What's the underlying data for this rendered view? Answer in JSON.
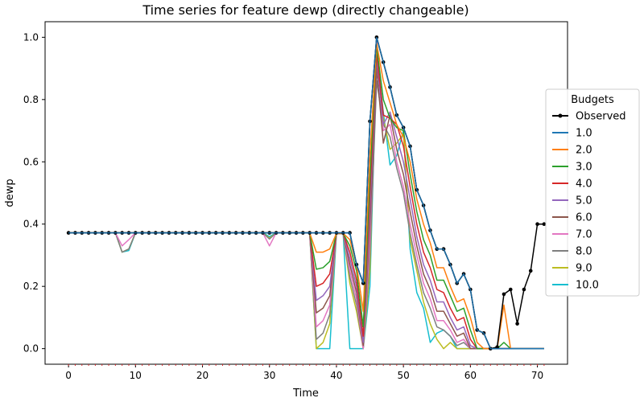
{
  "chart_data": {
    "type": "line",
    "title": "Time series for feature dewp (directly changeable)",
    "xlabel": "Time",
    "ylabel": "dewp",
    "xlim": [
      -3.5,
      74.5
    ],
    "ylim": [
      -0.05,
      1.05
    ],
    "xticks": [
      0,
      10,
      20,
      30,
      40,
      50,
      60,
      70
    ],
    "yticks": [
      0.0,
      0.2,
      0.4,
      0.6,
      0.8,
      1.0
    ],
    "grid": false,
    "legend": {
      "title": "Budgets",
      "placement": "right"
    },
    "series": [
      {
        "name": "Observed",
        "color": "#000000",
        "markers": true,
        "values": [
          0.372,
          0.372,
          0.372,
          0.372,
          0.372,
          0.372,
          0.372,
          0.372,
          0.372,
          0.372,
          0.372,
          0.372,
          0.372,
          0.372,
          0.372,
          0.372,
          0.372,
          0.372,
          0.372,
          0.372,
          0.372,
          0.372,
          0.372,
          0.372,
          0.372,
          0.372,
          0.372,
          0.372,
          0.372,
          0.372,
          0.372,
          0.372,
          0.372,
          0.372,
          0.372,
          0.372,
          0.372,
          0.372,
          0.372,
          0.372,
          0.372,
          0.372,
          0.372,
          0.27,
          0.21,
          0.73,
          1.0,
          0.92,
          0.84,
          0.75,
          0.71,
          0.65,
          0.51,
          0.46,
          0.38,
          0.32,
          0.32,
          0.27,
          0.21,
          0.24,
          0.19,
          0.06,
          0.05,
          0.0,
          0.005,
          0.175,
          0.19,
          0.08,
          0.19,
          0.25,
          0.4,
          0.4
        ]
      },
      {
        "name": "1.0",
        "color": "#1f77b4",
        "values": [
          0.372,
          0.372,
          0.372,
          0.372,
          0.372,
          0.372,
          0.372,
          0.372,
          0.372,
          0.372,
          0.372,
          0.372,
          0.372,
          0.372,
          0.372,
          0.372,
          0.372,
          0.372,
          0.372,
          0.372,
          0.372,
          0.372,
          0.372,
          0.372,
          0.372,
          0.372,
          0.372,
          0.372,
          0.372,
          0.372,
          0.372,
          0.372,
          0.372,
          0.372,
          0.372,
          0.372,
          0.372,
          0.372,
          0.372,
          0.372,
          0.372,
          0.372,
          0.372,
          0.27,
          0.21,
          0.73,
          1.0,
          0.92,
          0.84,
          0.75,
          0.71,
          0.65,
          0.51,
          0.46,
          0.38,
          0.32,
          0.32,
          0.27,
          0.21,
          0.24,
          0.19,
          0.06,
          0.05,
          0.0,
          0.0,
          0.0,
          0.0,
          0.0,
          0.0,
          0.0,
          0.0,
          0.0
        ]
      },
      {
        "name": "2.0",
        "color": "#ff7f0e",
        "values": [
          0.372,
          0.372,
          0.372,
          0.372,
          0.372,
          0.372,
          0.372,
          0.372,
          0.372,
          0.372,
          0.372,
          0.372,
          0.372,
          0.372,
          0.372,
          0.372,
          0.372,
          0.372,
          0.372,
          0.372,
          0.372,
          0.372,
          0.372,
          0.372,
          0.372,
          0.372,
          0.372,
          0.372,
          0.372,
          0.372,
          0.372,
          0.372,
          0.372,
          0.372,
          0.372,
          0.372,
          0.372,
          0.31,
          0.31,
          0.32,
          0.37,
          0.37,
          0.35,
          0.27,
          0.12,
          0.62,
          0.98,
          0.86,
          0.79,
          0.72,
          0.68,
          0.6,
          0.48,
          0.4,
          0.34,
          0.26,
          0.26,
          0.2,
          0.15,
          0.16,
          0.1,
          0.02,
          0.0,
          0.0,
          0.0,
          0.14,
          0.0,
          0.0,
          0.0,
          0.0,
          0.0,
          0.0
        ]
      },
      {
        "name": "3.0",
        "color": "#2ca02c",
        "values": [
          0.372,
          0.372,
          0.372,
          0.372,
          0.372,
          0.372,
          0.372,
          0.372,
          0.372,
          0.372,
          0.372,
          0.372,
          0.372,
          0.372,
          0.372,
          0.372,
          0.372,
          0.372,
          0.372,
          0.372,
          0.372,
          0.372,
          0.372,
          0.372,
          0.372,
          0.372,
          0.372,
          0.372,
          0.372,
          0.372,
          0.372,
          0.372,
          0.372,
          0.372,
          0.372,
          0.372,
          0.372,
          0.255,
          0.26,
          0.28,
          0.37,
          0.37,
          0.33,
          0.25,
          0.07,
          0.55,
          0.97,
          0.8,
          0.74,
          0.71,
          0.7,
          0.56,
          0.44,
          0.35,
          0.3,
          0.22,
          0.22,
          0.17,
          0.12,
          0.13,
          0.06,
          0.0,
          0.0,
          0.0,
          0.0,
          0.02,
          0.0,
          0.0,
          0.0,
          0.0,
          0.0,
          0.0
        ]
      },
      {
        "name": "4.0",
        "color": "#d62728",
        "values": [
          0.372,
          0.372,
          0.372,
          0.372,
          0.372,
          0.372,
          0.372,
          0.372,
          0.372,
          0.372,
          0.372,
          0.372,
          0.372,
          0.372,
          0.372,
          0.372,
          0.372,
          0.372,
          0.372,
          0.372,
          0.372,
          0.372,
          0.372,
          0.372,
          0.372,
          0.372,
          0.372,
          0.372,
          0.372,
          0.372,
          0.372,
          0.372,
          0.372,
          0.372,
          0.372,
          0.372,
          0.372,
          0.2,
          0.21,
          0.24,
          0.37,
          0.37,
          0.31,
          0.22,
          0.04,
          0.5,
          0.95,
          0.75,
          0.74,
          0.72,
          0.65,
          0.52,
          0.4,
          0.31,
          0.26,
          0.19,
          0.18,
          0.13,
          0.09,
          0.1,
          0.03,
          0.0,
          0.0,
          0.0,
          0.0,
          0.0,
          0.0,
          0.0,
          0.0,
          0.0,
          0.0,
          0.0
        ]
      },
      {
        "name": "5.0",
        "color": "#9467bd",
        "values": [
          0.372,
          0.372,
          0.372,
          0.372,
          0.372,
          0.372,
          0.372,
          0.372,
          0.372,
          0.372,
          0.372,
          0.372,
          0.372,
          0.372,
          0.372,
          0.372,
          0.372,
          0.372,
          0.372,
          0.372,
          0.372,
          0.372,
          0.372,
          0.372,
          0.372,
          0.372,
          0.372,
          0.372,
          0.372,
          0.372,
          0.372,
          0.372,
          0.372,
          0.372,
          0.372,
          0.372,
          0.372,
          0.155,
          0.17,
          0.2,
          0.37,
          0.37,
          0.29,
          0.2,
          0.02,
          0.45,
          0.93,
          0.72,
          0.76,
          0.68,
          0.6,
          0.48,
          0.36,
          0.27,
          0.22,
          0.15,
          0.15,
          0.1,
          0.06,
          0.07,
          0.01,
          0.0,
          0.0,
          0.0,
          0.0,
          0.0,
          0.0,
          0.0,
          0.0,
          0.0,
          0.0,
          0.0
        ]
      },
      {
        "name": "6.0",
        "color": "#8c564b",
        "values": [
          0.372,
          0.372,
          0.372,
          0.372,
          0.372,
          0.372,
          0.372,
          0.372,
          0.372,
          0.372,
          0.372,
          0.372,
          0.372,
          0.372,
          0.372,
          0.372,
          0.372,
          0.372,
          0.372,
          0.372,
          0.372,
          0.372,
          0.372,
          0.372,
          0.372,
          0.372,
          0.372,
          0.372,
          0.372,
          0.372,
          0.372,
          0.372,
          0.372,
          0.372,
          0.372,
          0.372,
          0.372,
          0.115,
          0.13,
          0.17,
          0.37,
          0.37,
          0.27,
          0.18,
          0.01,
          0.4,
          0.9,
          0.66,
          0.75,
          0.64,
          0.56,
          0.44,
          0.33,
          0.24,
          0.19,
          0.12,
          0.12,
          0.08,
          0.04,
          0.05,
          0.0,
          0.0,
          0.0,
          0.0,
          0.0,
          0.0,
          0.0,
          0.0,
          0.0,
          0.0,
          0.0,
          0.0
        ]
      },
      {
        "name": "7.0",
        "color": "#e377c2",
        "values": [
          0.372,
          0.372,
          0.372,
          0.372,
          0.372,
          0.372,
          0.372,
          0.372,
          0.33,
          0.35,
          0.372,
          0.372,
          0.372,
          0.372,
          0.372,
          0.372,
          0.372,
          0.372,
          0.372,
          0.372,
          0.372,
          0.372,
          0.372,
          0.372,
          0.372,
          0.372,
          0.372,
          0.372,
          0.372,
          0.372,
          0.33,
          0.372,
          0.372,
          0.372,
          0.372,
          0.372,
          0.372,
          0.07,
          0.09,
          0.14,
          0.37,
          0.37,
          0.25,
          0.16,
          0.0,
          0.35,
          0.99,
          0.7,
          0.72,
          0.6,
          0.52,
          0.4,
          0.3,
          0.21,
          0.16,
          0.09,
          0.09,
          0.06,
          0.02,
          0.03,
          0.0,
          0.0,
          0.0,
          0.0,
          0.0,
          0.0,
          0.0,
          0.0,
          0.0,
          0.0,
          0.0,
          0.0
        ]
      },
      {
        "name": "8.0",
        "color": "#7f7f7f",
        "values": [
          0.372,
          0.372,
          0.372,
          0.372,
          0.372,
          0.372,
          0.372,
          0.372,
          0.31,
          0.32,
          0.372,
          0.372,
          0.372,
          0.372,
          0.372,
          0.372,
          0.372,
          0.372,
          0.372,
          0.372,
          0.372,
          0.372,
          0.372,
          0.372,
          0.372,
          0.372,
          0.372,
          0.372,
          0.372,
          0.372,
          0.352,
          0.372,
          0.372,
          0.372,
          0.372,
          0.372,
          0.372,
          0.03,
          0.05,
          0.11,
          0.37,
          0.37,
          0.23,
          0.14,
          0.0,
          0.3,
          0.86,
          0.72,
          0.68,
          0.58,
          0.5,
          0.37,
          0.27,
          0.18,
          0.13,
          0.07,
          0.06,
          0.04,
          0.01,
          0.02,
          0.0,
          0.0,
          0.0,
          0.0,
          0.0,
          0.0,
          0.0,
          0.0,
          0.0,
          0.0,
          0.0,
          0.0
        ]
      },
      {
        "name": "9.0",
        "color": "#bcbd22",
        "values": [
          0.372,
          0.372,
          0.372,
          0.372,
          0.372,
          0.372,
          0.372,
          0.372,
          0.31,
          0.32,
          0.372,
          0.372,
          0.372,
          0.372,
          0.372,
          0.372,
          0.372,
          0.372,
          0.372,
          0.372,
          0.372,
          0.372,
          0.372,
          0.372,
          0.372,
          0.372,
          0.372,
          0.372,
          0.372,
          0.372,
          0.355,
          0.372,
          0.372,
          0.372,
          0.372,
          0.372,
          0.372,
          0.0,
          0.02,
          0.08,
          0.37,
          0.37,
          0.21,
          0.12,
          0.0,
          0.25,
          0.96,
          0.74,
          0.64,
          0.66,
          0.69,
          0.35,
          0.25,
          0.15,
          0.08,
          0.03,
          0.0,
          0.02,
          0.0,
          0.0,
          0.0,
          0.0,
          0.0,
          0.0,
          0.0,
          0.0,
          0.0,
          0.0,
          0.0,
          0.0,
          0.0,
          0.0
        ]
      },
      {
        "name": "10.0",
        "color": "#17becf",
        "values": [
          0.372,
          0.372,
          0.372,
          0.372,
          0.372,
          0.372,
          0.372,
          0.372,
          0.31,
          0.315,
          0.372,
          0.372,
          0.372,
          0.372,
          0.372,
          0.372,
          0.372,
          0.372,
          0.372,
          0.372,
          0.372,
          0.372,
          0.372,
          0.372,
          0.372,
          0.372,
          0.372,
          0.372,
          0.372,
          0.372,
          0.36,
          0.372,
          0.372,
          0.372,
          0.372,
          0.372,
          0.372,
          0.0,
          0.0,
          0.0,
          0.37,
          0.37,
          0.0,
          0.0,
          0.0,
          0.2,
          0.95,
          0.76,
          0.59,
          0.62,
          0.7,
          0.32,
          0.18,
          0.13,
          0.02,
          0.05,
          0.06,
          0.04,
          0.0,
          0.0,
          0.0,
          0.0,
          0.0,
          0.0,
          0.0,
          0.0,
          0.0,
          0.0,
          0.0,
          0.0,
          0.0,
          0.0
        ]
      }
    ]
  }
}
